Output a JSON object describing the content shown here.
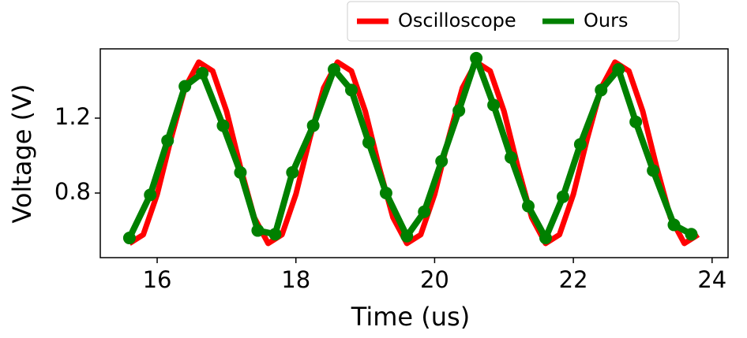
{
  "chart_data": {
    "type": "line",
    "x_label": "Time (us)",
    "y_label": "Voltage (V)",
    "xlim": [
      15.18,
      24.23
    ],
    "ylim": [
      0.455,
      1.57
    ],
    "xticks": [
      16,
      18,
      20,
      22,
      24
    ],
    "yticks": [
      0.8,
      1.2
    ],
    "legend": "top-right",
    "series": [
      {
        "name": "Oscilloscope",
        "color": "#ff0000",
        "markers": false,
        "x": [
          15.6,
          15.8,
          16.0,
          16.2,
          16.4,
          16.6,
          16.8,
          17.0,
          17.2,
          17.4,
          17.6,
          17.8,
          18.0,
          18.2,
          18.4,
          18.6,
          18.8,
          19.0,
          19.2,
          19.4,
          19.6,
          19.8,
          20.0,
          20.2,
          20.4,
          20.6,
          20.8,
          21.0,
          21.2,
          21.4,
          21.6,
          21.8,
          22.0,
          22.2,
          22.4,
          22.6,
          22.8,
          23.0,
          23.2,
          23.4,
          23.6,
          23.8
        ],
        "values": [
          0.531,
          0.578,
          0.793,
          1.091,
          1.361,
          1.499,
          1.452,
          1.237,
          0.939,
          0.669,
          0.531,
          0.578,
          0.793,
          1.091,
          1.361,
          1.499,
          1.452,
          1.237,
          0.939,
          0.669,
          0.531,
          0.578,
          0.793,
          1.091,
          1.361,
          1.499,
          1.452,
          1.237,
          0.939,
          0.669,
          0.531,
          0.578,
          0.793,
          1.091,
          1.361,
          1.499,
          1.452,
          1.237,
          0.939,
          0.669,
          0.531,
          0.578
        ]
      },
      {
        "name": "Ours",
        "color": "#008000",
        "markers": true,
        "x": [
          15.6,
          15.9,
          16.15,
          16.4,
          16.65,
          16.95,
          17.2,
          17.45,
          17.7,
          17.95,
          18.25,
          18.55,
          18.8,
          19.05,
          19.3,
          19.6,
          19.85,
          20.1,
          20.35,
          20.6,
          20.85,
          21.1,
          21.35,
          21.6,
          21.85,
          22.1,
          22.4,
          22.65,
          22.9,
          23.15,
          23.45,
          23.7
        ],
        "values": [
          0.56,
          0.79,
          1.08,
          1.37,
          1.44,
          1.16,
          0.91,
          0.6,
          0.58,
          0.91,
          1.16,
          1.46,
          1.35,
          1.07,
          0.8,
          0.57,
          0.7,
          0.97,
          1.24,
          1.52,
          1.27,
          0.99,
          0.73,
          0.56,
          0.78,
          1.06,
          1.35,
          1.46,
          1.18,
          0.92,
          0.63,
          0.58
        ]
      }
    ]
  }
}
